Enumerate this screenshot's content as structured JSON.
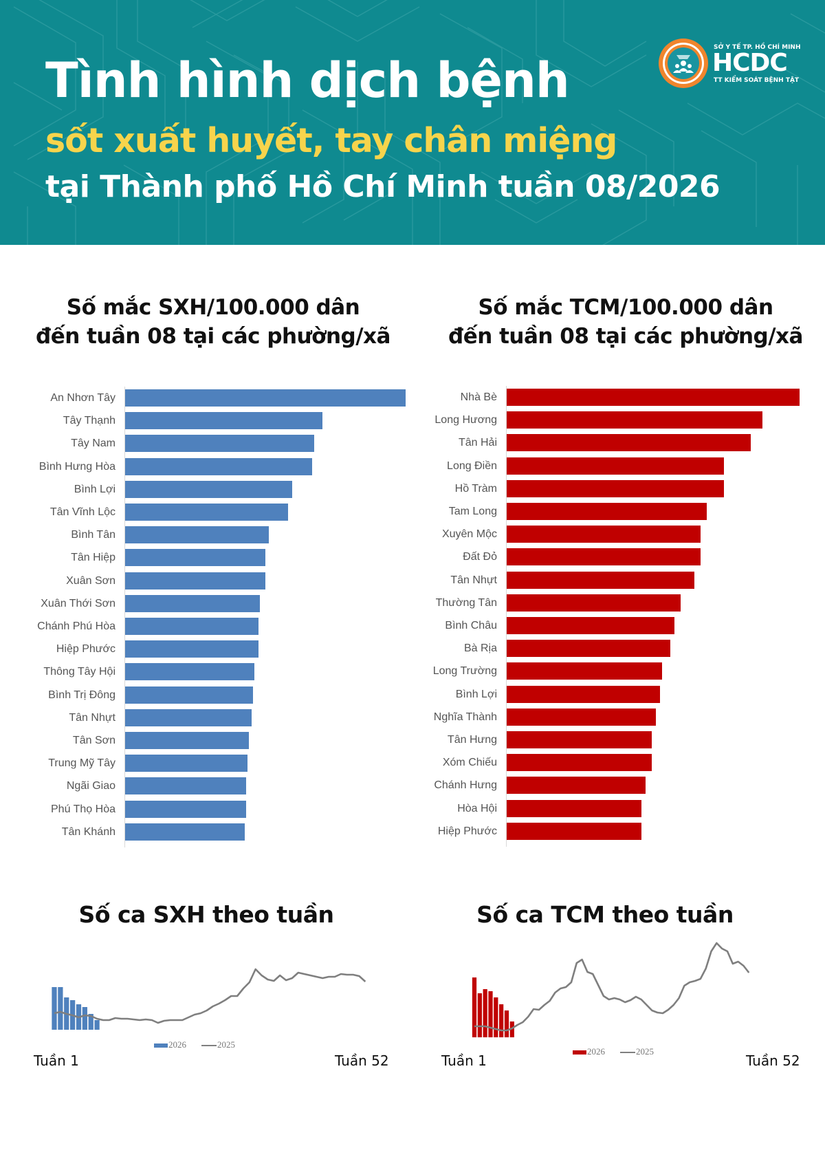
{
  "header": {
    "title_line1": "Tình hình dịch bệnh",
    "title_line2": "sốt xuất huyết, tay chân miệng",
    "title_line3": "tại Thành phố Hồ Chí Minh tuần 08/2026",
    "background_color": "#0f8a90",
    "highlight_color": "#f7d44c",
    "logo": {
      "top_text": "SỞ Y TẾ TP. HỒ CHÍ MINH",
      "main_text": "HCDC",
      "bottom_text": "TT KIỂM SOÁT BỆNH TẬT",
      "ring_color": "#f0852d",
      "icon": "people-group-icon"
    }
  },
  "sxh_rank": {
    "title_line1": "Số mắc SXH/100.000 dân",
    "title_line2": "đến tuần 08 tại các phường/xã",
    "color": "#4f81bd"
  },
  "tcm_rank": {
    "title_line1": "Số mắc TCM/100.000 dân",
    "title_line2": "đến tuần 08 tại các phường/xã",
    "color": "#c00000"
  },
  "sxh_weekly": {
    "title": "Số ca SXH theo tuần",
    "x_start": "Tuần 1",
    "x_end": "Tuần 52",
    "legend_bar": "2026",
    "legend_line": "2025",
    "bar_color": "#4f81bd",
    "line_color": "#7f7f7f"
  },
  "tcm_weekly": {
    "title": "Số ca TCM theo tuần",
    "x_start": "Tuần 1",
    "x_end": "Tuần 52",
    "legend_bar": "2026",
    "legend_line": "2025",
    "bar_color": "#c00000",
    "line_color": "#7f7f7f"
  },
  "chart_data": [
    {
      "type": "bar",
      "orientation": "horizontal",
      "title": "Số mắc SXH/100.000 dân đến tuần 08 tại các phường/xã",
      "xlabel": "",
      "ylabel": "",
      "note": "No value axis shown; values are relative bar lengths (px)",
      "categories": [
        "An Nhơn Tây",
        "Tây Thạnh",
        "Tây Nam",
        "Bình Hưng Hòa",
        "Bình Lợi",
        "Tân Vĩnh Lộc",
        "Bình Tân",
        "Tân Hiệp",
        "Xuân Sơn",
        "Xuân Thới Sơn",
        "Chánh Phú Hòa",
        "Hiệp Phước",
        "Thông Tây Hội",
        "Bình Trị Đông",
        "Tân Nhựt",
        "Tân Sơn",
        "Trung Mỹ Tây",
        "Ngãi Giao",
        "Phú Thọ Hòa",
        "Tân Khánh"
      ],
      "values": [
        408,
        287,
        275,
        272,
        243,
        237,
        209,
        204,
        204,
        196,
        194,
        194,
        188,
        186,
        184,
        180,
        178,
        176,
        176,
        174
      ],
      "xlim": [
        0,
        420
      ],
      "grid": false,
      "legend": null,
      "color": "#4f81bd"
    },
    {
      "type": "bar",
      "orientation": "horizontal",
      "title": "Số mắc TCM/100.000 dân đến tuần 08 tại các phường/xã",
      "xlabel": "",
      "ylabel": "",
      "note": "No value axis shown; values are relative bar lengths (px)",
      "categories": [
        "Nhà Bè",
        "Long Hương",
        "Tân Hải",
        "Long Điền",
        "Hồ Tràm",
        "Tam Long",
        "Xuyên Mộc",
        "Đất Đỏ",
        "Tân Nhựt",
        "Thường Tân",
        "Bình Châu",
        "Bà Rịa",
        "Long Trường",
        "Bình Lợi",
        "Nghĩa Thành",
        "Tân Hưng",
        "Xóm Chiếu",
        "Chánh Hưng",
        "Hòa Hội",
        "Hiệp Phước"
      ],
      "values": [
        426,
        372,
        355,
        316,
        316,
        291,
        282,
        282,
        273,
        253,
        244,
        238,
        226,
        223,
        217,
        211,
        211,
        202,
        196,
        196
      ],
      "xlim": [
        0,
        440
      ],
      "grid": false,
      "legend": null,
      "color": "#c00000"
    },
    {
      "type": "bar+line",
      "title": "Số ca SXH theo tuần",
      "xlabel_start": "Tuần 1",
      "xlabel_end": "Tuần 52",
      "note": "No value axis shown; values are relative heights (px above baseline)",
      "x": [
        1,
        2,
        3,
        4,
        5,
        6,
        7,
        8,
        9,
        10,
        11,
        12,
        13,
        14,
        15,
        16,
        17,
        18,
        19,
        20,
        21,
        22,
        23,
        24,
        25,
        26,
        27,
        28,
        29,
        30,
        31,
        32,
        33,
        34,
        35,
        36,
        37,
        38,
        39,
        40,
        41,
        42,
        43,
        44,
        45,
        46,
        47,
        48,
        49,
        50,
        51,
        52
      ],
      "series": [
        {
          "name": "2026",
          "type": "bar",
          "values": [
            62,
            62,
            47,
            43,
            37,
            33,
            23,
            14
          ]
        },
        {
          "name": "2025",
          "type": "line",
          "values": [
            24,
            26,
            23,
            21,
            18,
            21,
            20,
            16,
            14,
            14,
            17,
            16,
            16,
            15,
            14,
            15,
            14,
            10,
            13,
            14,
            14,
            14,
            18,
            22,
            24,
            28,
            34,
            38,
            43,
            49,
            49,
            60,
            69,
            88,
            79,
            73,
            71,
            79,
            72,
            75,
            83,
            81,
            79,
            77,
            75,
            77,
            77,
            81,
            80,
            80,
            78,
            70
          ]
        }
      ],
      "legend": [
        "2026",
        "2025"
      ],
      "legend_position": "bottom",
      "grid": false
    },
    {
      "type": "bar+line",
      "title": "Số ca TCM theo tuần",
      "xlabel_start": "Tuần 1",
      "xlabel_end": "Tuần 52",
      "note": "No value axis shown; values are relative heights (px above baseline)",
      "x": [
        1,
        2,
        3,
        4,
        5,
        6,
        7,
        8,
        9,
        10,
        11,
        12,
        13,
        14,
        15,
        16,
        17,
        18,
        19,
        20,
        21,
        22,
        23,
        24,
        25,
        26,
        27,
        28,
        29,
        30,
        31,
        32,
        33,
        34,
        35,
        36,
        37,
        38,
        39,
        40,
        41,
        42,
        43,
        44,
        45,
        46,
        47,
        48,
        49,
        50,
        51,
        52
      ],
      "series": [
        {
          "name": "2026",
          "type": "bar",
          "values": [
            87,
            64,
            70,
            67,
            58,
            48,
            39,
            23
          ]
        },
        {
          "name": "2025",
          "type": "line",
          "values": [
            16,
            16,
            16,
            14,
            12,
            10,
            10,
            13,
            18,
            22,
            30,
            41,
            40,
            47,
            53,
            65,
            71,
            73,
            80,
            108,
            113,
            95,
            92,
            76,
            60,
            55,
            57,
            55,
            51,
            54,
            59,
            55,
            47,
            39,
            36,
            35,
            40,
            47,
            57,
            75,
            80,
            82,
            85,
            100,
            125,
            137,
            129,
            125,
            107,
            110,
            104,
            94
          ]
        }
      ],
      "legend": [
        "2026",
        "2025"
      ],
      "legend_position": "bottom",
      "grid": false
    }
  ]
}
